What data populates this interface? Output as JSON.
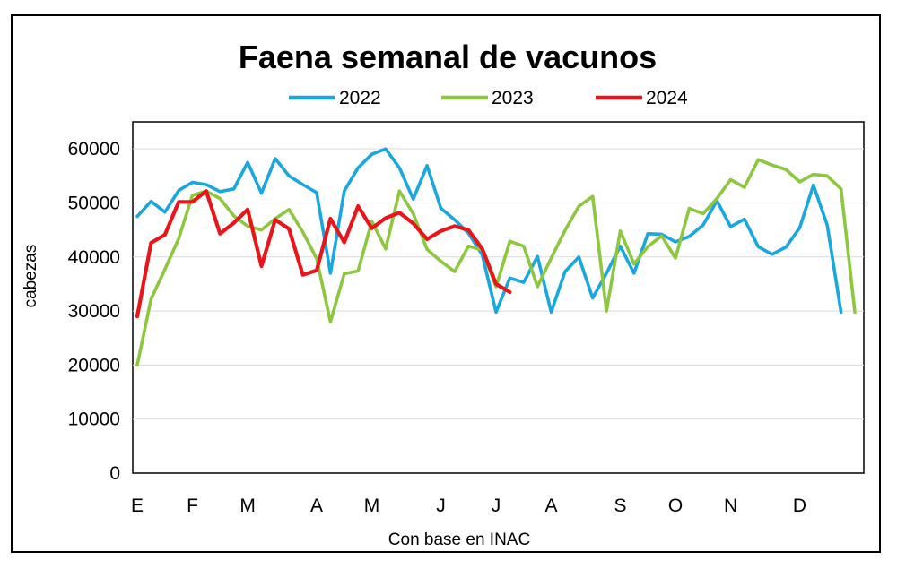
{
  "chart_data": {
    "type": "line",
    "title": "Faena semanal de vacunos",
    "xlabel": "Con base en INAC",
    "ylabel": "cabezas",
    "ylim": [
      0,
      65000
    ],
    "yticks": [
      0,
      10000,
      20000,
      30000,
      40000,
      50000,
      60000
    ],
    "ytick_labels": [
      "0",
      "10000",
      "20000",
      "30000",
      "40000",
      "50000",
      "60000"
    ],
    "x_unit": "week",
    "xlim": [
      1,
      53
    ],
    "month_ticks": [
      {
        "label": "E",
        "week": 1
      },
      {
        "label": "F",
        "week": 5
      },
      {
        "label": "M",
        "week": 9
      },
      {
        "label": "A",
        "week": 14
      },
      {
        "label": "M",
        "week": 18
      },
      {
        "label": "J",
        "week": 23
      },
      {
        "label": "J",
        "week": 27
      },
      {
        "label": "A",
        "week": 31
      },
      {
        "label": "S",
        "week": 36
      },
      {
        "label": "O",
        "week": 40
      },
      {
        "label": "N",
        "week": 44
      },
      {
        "label": "D",
        "week": 49
      }
    ],
    "grid": true,
    "legend_position": "top",
    "series": [
      {
        "name": "2022",
        "color": "#1AA7DE",
        "values": [
          47500,
          50300,
          48300,
          52300,
          53800,
          53400,
          52100,
          52600,
          57500,
          51800,
          58200,
          55000,
          53400,
          51900,
          37000,
          52200,
          56500,
          59000,
          60000,
          56500,
          50700,
          56900,
          49000,
          46900,
          44400,
          40400,
          29800,
          36100,
          35300,
          40100,
          29800,
          37300,
          40000,
          32400,
          37000,
          42000,
          37000,
          44300,
          44200,
          42800,
          43800,
          45900,
          50400,
          45600,
          47000,
          41900,
          40500,
          41800,
          45400,
          53300,
          45900,
          29800
        ]
      },
      {
        "name": "2023",
        "color": "#8DC63F",
        "values": [
          20000,
          32200,
          37700,
          43400,
          51400,
          52200,
          50800,
          47600,
          45700,
          45000,
          47100,
          48800,
          44600,
          39700,
          28000,
          36900,
          37400,
          46600,
          41500,
          52200,
          48000,
          41400,
          39200,
          37300,
          42000,
          41300,
          34500,
          42900,
          42000,
          34500,
          39800,
          44900,
          49400,
          51200,
          30000,
          44800,
          38700,
          41900,
          43900,
          39800,
          49000,
          48000,
          50800,
          54300,
          52900,
          58000,
          57000,
          56200,
          53900,
          55300,
          55000,
          52600,
          29800
        ]
      },
      {
        "name": "2024",
        "color": "#E8161B",
        "values": [
          29000,
          42600,
          44100,
          50200,
          50200,
          52200,
          44300,
          46300,
          48800,
          38300,
          46900,
          45200,
          36700,
          37500,
          47100,
          42700,
          49400,
          45300,
          47200,
          48200,
          46200,
          43300,
          44800,
          45700,
          45000,
          41500,
          35000,
          33500
        ]
      }
    ]
  }
}
